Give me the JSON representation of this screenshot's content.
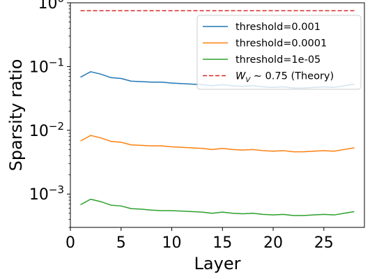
{
  "chart_data": {
    "type": "line",
    "title": "",
    "xlabel": "Layer",
    "ylabel": "Sparsity ratio",
    "xlim": [
      0,
      29
    ],
    "ylim": [
      0.0003,
      1.0
    ],
    "yscale": "log",
    "grid": false,
    "legend_position": "top-right",
    "x_ticks": [
      0,
      5,
      10,
      15,
      20,
      25
    ],
    "x_tick_labels": [
      "0",
      "5",
      "10",
      "15",
      "20",
      "25"
    ],
    "y_ticks": [
      0.001,
      0.01,
      0.1,
      1
    ],
    "y_tick_labels": [
      {
        "base": "10",
        "exp": "−3"
      },
      {
        "base": "10",
        "exp": "−2"
      },
      {
        "base": "10",
        "exp": "−1"
      },
      {
        "base": "10",
        "exp": "0"
      }
    ],
    "x": [
      1,
      2,
      3,
      4,
      5,
      6,
      7,
      8,
      9,
      10,
      11,
      12,
      13,
      14,
      15,
      16,
      17,
      18,
      19,
      20,
      21,
      22,
      23,
      24,
      25,
      26,
      27,
      28
    ],
    "series": [
      {
        "name": "threshold=0.001",
        "color": "#1f77b4",
        "style": "solid",
        "values": [
          0.068,
          0.083,
          0.076,
          0.067,
          0.065,
          0.059,
          0.058,
          0.057,
          0.057,
          0.055,
          0.054,
          0.053,
          0.052,
          0.05,
          0.052,
          0.05,
          0.049,
          0.05,
          0.048,
          0.047,
          0.048,
          0.046,
          0.046,
          0.047,
          0.048,
          0.047,
          0.05,
          0.053
        ]
      },
      {
        "name": "threshold=0.0001",
        "color": "#ff7f0e",
        "style": "solid",
        "values": [
          0.0068,
          0.0083,
          0.0076,
          0.0067,
          0.0065,
          0.0059,
          0.0058,
          0.0057,
          0.0057,
          0.0055,
          0.0054,
          0.0053,
          0.0052,
          0.005,
          0.0052,
          0.005,
          0.0049,
          0.005,
          0.0048,
          0.0047,
          0.0048,
          0.0046,
          0.0046,
          0.0047,
          0.0048,
          0.0047,
          0.005,
          0.0053
        ]
      },
      {
        "name": "threshold=1e-05",
        "color": "#2ca02c",
        "style": "solid",
        "values": [
          0.00068,
          0.00083,
          0.00076,
          0.00067,
          0.00065,
          0.00059,
          0.00058,
          0.00056,
          0.00055,
          0.00055,
          0.00054,
          0.00053,
          0.00052,
          0.0005,
          0.00052,
          0.0005,
          0.00049,
          0.0005,
          0.00048,
          0.00047,
          0.00048,
          0.00046,
          0.00046,
          0.00047,
          0.00048,
          0.00047,
          0.0005,
          0.00053
        ]
      },
      {
        "name": "W_V ~ 0.75 (Theory)",
        "legend_main": "W",
        "legend_sub": "V",
        "legend_rest": " ∼ 0.75 (Theory)",
        "color": "#d62728",
        "style": "dashed",
        "values": [
          0.75,
          0.75,
          0.75,
          0.75,
          0.75,
          0.75,
          0.75,
          0.75,
          0.75,
          0.75,
          0.75,
          0.75,
          0.75,
          0.75,
          0.75,
          0.75,
          0.75,
          0.75,
          0.75,
          0.75,
          0.75,
          0.75,
          0.75,
          0.75,
          0.75,
          0.75,
          0.75,
          0.75
        ]
      }
    ]
  }
}
